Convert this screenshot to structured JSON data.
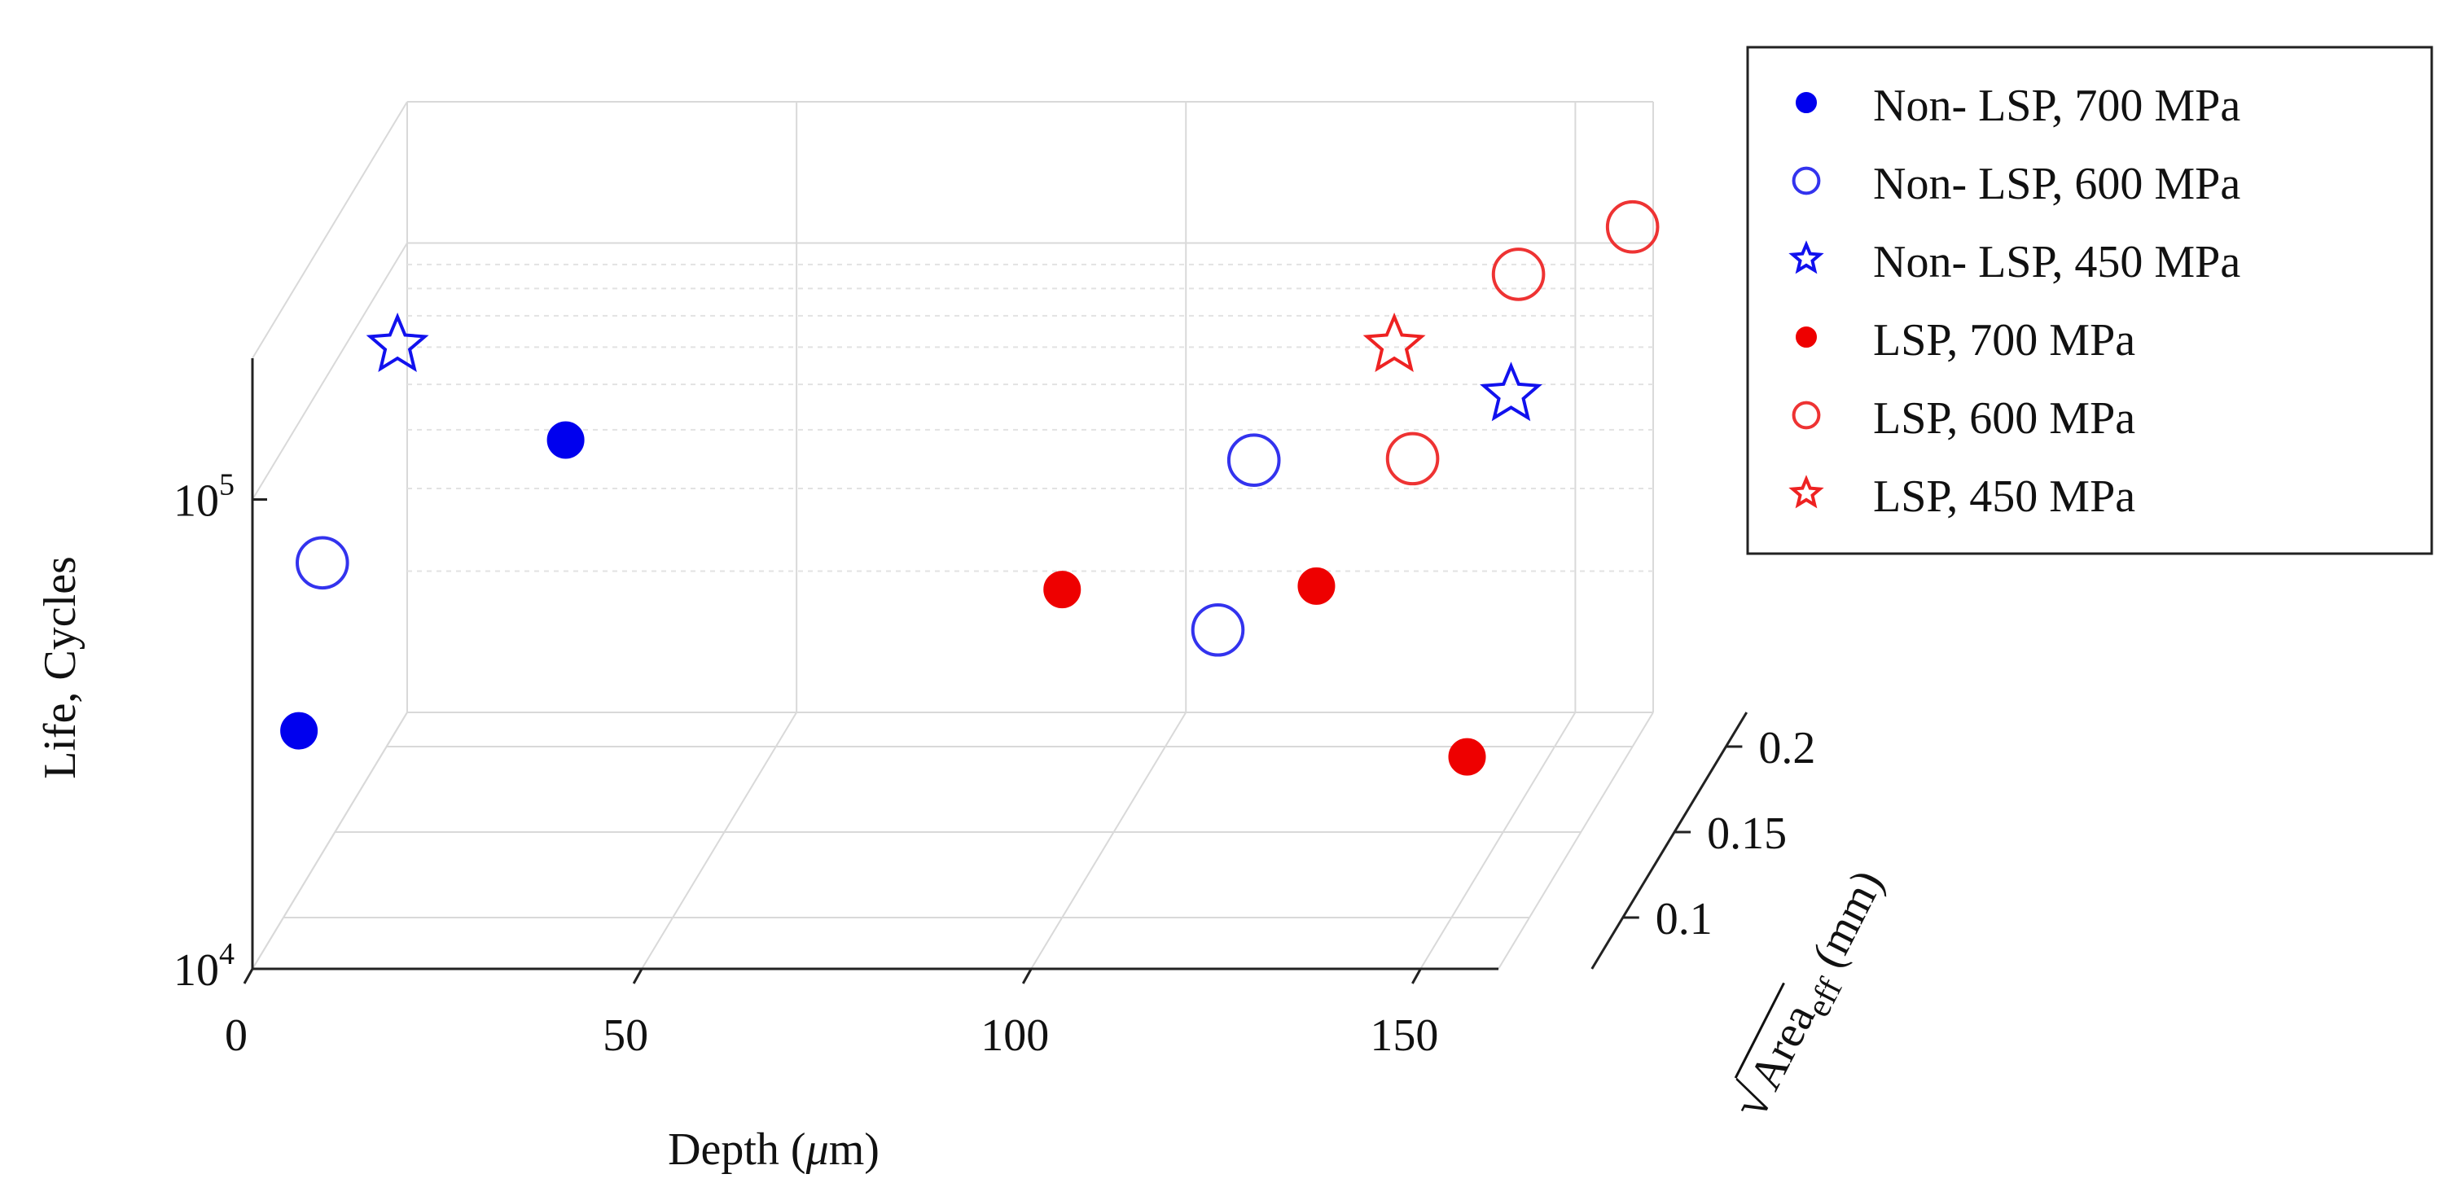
{
  "chart_data": {
    "type": "scatter",
    "dimensions": "3d",
    "x_axis": {
      "label": "Depth (",
      "label_symbol": "μ",
      "label_suffix": "m)",
      "range": [
        0,
        160
      ],
      "ticks": [
        0,
        50,
        100,
        150
      ],
      "tick_labels": [
        "0",
        "50",
        "100",
        "150"
      ]
    },
    "y_axis": {
      "label": "Area",
      "label_subscript": "eff",
      "label_unit": " (mm)",
      "label_radical": "√",
      "range": [
        0.07,
        0.22
      ],
      "ticks": [
        0.1,
        0.15,
        0.2
      ],
      "tick_labels": [
        "0.1",
        "0.15",
        "0.2"
      ]
    },
    "z_axis": {
      "label": "Life, Cycles",
      "scale": "log",
      "range": [
        10000,
        200000
      ],
      "ticks": [
        10000,
        100000
      ],
      "tick_base": "10",
      "tick_exponents": [
        "4",
        "5"
      ]
    },
    "grid": true,
    "legend_position": "top-right",
    "series": [
      {
        "name": "Non- LSP, 700 MPa",
        "color": "#0000ee",
        "marker": "filled-circle",
        "points": [
          {
            "depth": 2,
            "area": 0.1,
            "life": 25000
          },
          {
            "depth": 23,
            "area": 0.2,
            "life": 45000
          }
        ]
      },
      {
        "name": "Non- LSP, 600 MPa",
        "color": "#3333ee",
        "marker": "open-circle",
        "points": [
          {
            "depth": 5,
            "area": 0.1,
            "life": 57000
          },
          {
            "depth": 120,
            "area": 0.1,
            "life": 41000
          },
          {
            "depth": 118,
            "area": 0.15,
            "life": 62000
          }
        ]
      },
      {
        "name": "Non- LSP, 450 MPa",
        "color": "#1111ee",
        "marker": "open-star",
        "points": [
          {
            "depth": 12,
            "area": 0.12,
            "life": 140000
          },
          {
            "depth": 155,
            "area": 0.12,
            "life": 110000
          }
        ]
      },
      {
        "name": "LSP, 700 MPa",
        "color": "#ee0000",
        "marker": "filled-circle",
        "points": [
          {
            "depth": 100,
            "area": 0.1,
            "life": 50000
          },
          {
            "depth": 130,
            "area": 0.12,
            "life": 43000
          },
          {
            "depth": 152,
            "area": 0.1,
            "life": 22000
          }
        ]
      },
      {
        "name": "LSP, 600 MPa",
        "color": "#ee3333",
        "marker": "open-circle",
        "points": [
          {
            "depth": 145,
            "area": 0.1,
            "life": 95000
          },
          {
            "depth": 148,
            "area": 0.18,
            "life": 120000
          },
          {
            "depth": 160,
            "area": 0.2,
            "life": 128000
          }
        ]
      },
      {
        "name": "LSP, 450 MPa",
        "color": "#ee2222",
        "marker": "open-star",
        "points": [
          {
            "depth": 140,
            "area": 0.12,
            "life": 140000
          }
        ]
      }
    ]
  }
}
